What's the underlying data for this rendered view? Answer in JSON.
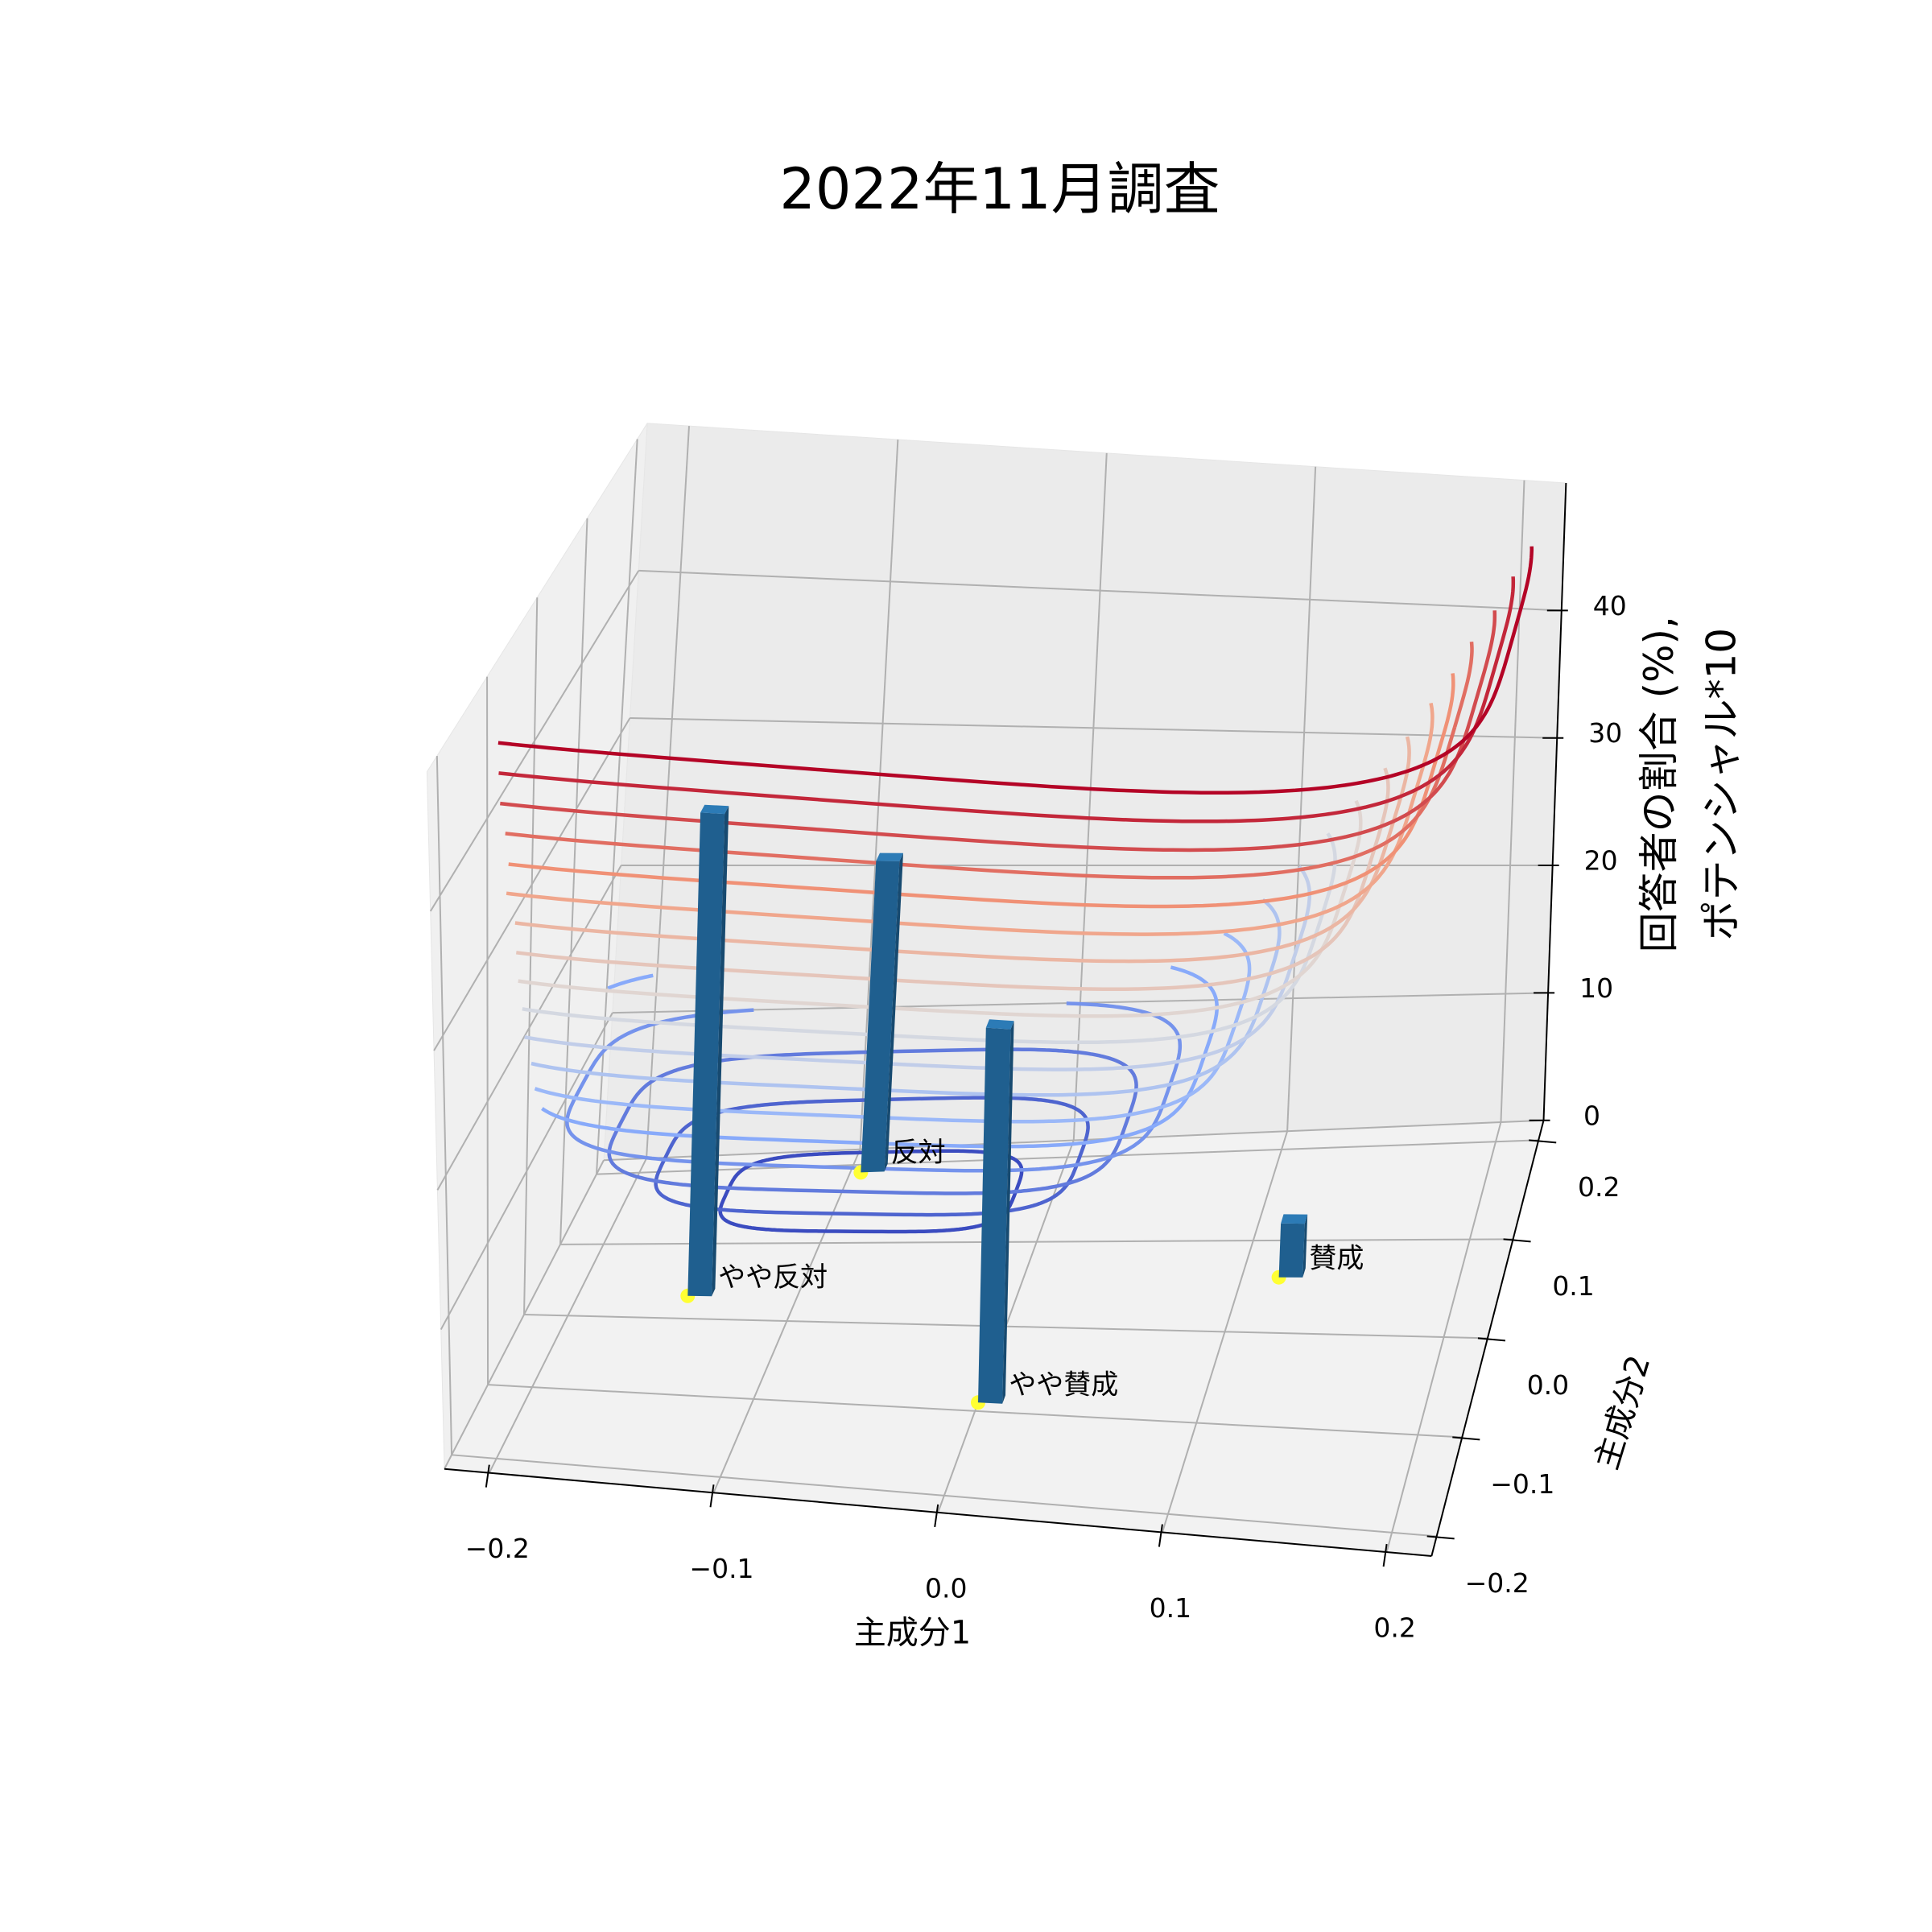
{
  "chart_data": {
    "type": "bar3d",
    "title": "2022年11月調査",
    "xlabel": "主成分1",
    "ylabel": "主成分2",
    "zlabel": [
      "回答者の割合 (%),",
      "ポテンシャル*10"
    ],
    "categories": [
      "やや反対",
      "反対",
      "やや賛成",
      "賛成"
    ],
    "x": [
      -0.15,
      -0.095,
      0.0,
      0.117
    ],
    "y": [
      0.03,
      0.19,
      -0.09,
      0.06
    ],
    "values": [
      34,
      22,
      27,
      4
    ],
    "color": "#1f5f8f",
    "marker_color": "#ffff33",
    "xlim": [
      -0.22,
      0.22
    ],
    "ylim": [
      -0.22,
      0.22
    ],
    "zlim": [
      0,
      50
    ],
    "xticks": [
      {
        "value": -0.2,
        "label": "−0.2"
      },
      {
        "value": -0.1,
        "label": "−0.1"
      },
      {
        "value": 0,
        "label": "0.0"
      },
      {
        "value": 0.1,
        "label": "0.1"
      },
      {
        "value": 0.2,
        "label": "0.2"
      }
    ],
    "yticks": [
      {
        "value": -0.2,
        "label": "−0.2"
      },
      {
        "value": -0.1,
        "label": "−0.1"
      },
      {
        "value": 0,
        "label": "0.0"
      },
      {
        "value": 0.1,
        "label": "0.1"
      },
      {
        "value": 0.2,
        "label": "0.2"
      }
    ],
    "zticks": [
      0,
      10,
      20,
      30,
      40
    ],
    "grid": true,
    "colormap": "coolwarm",
    "contour_center": [
      -0.08,
      0.12
    ],
    "contours": [
      {
        "level": 2.5,
        "rx": 0.067,
        "ry": 0.05
      },
      {
        "level": 5,
        "rx": 0.096,
        "ry": 0.072
      },
      {
        "level": 7.5,
        "rx": 0.117,
        "ry": 0.088
      },
      {
        "level": 10,
        "rx": 0.136,
        "ry": 0.102
      },
      {
        "level": 12.5,
        "rx": 0.152,
        "ry": 0.114
      },
      {
        "level": 15,
        "rx": 0.166,
        "ry": 0.125
      },
      {
        "level": 17.5,
        "rx": 0.179,
        "ry": 0.134
      },
      {
        "level": 20,
        "rx": 0.192,
        "ry": 0.144
      },
      {
        "level": 22.5,
        "rx": 0.203,
        "ry": 0.152
      },
      {
        "level": 25,
        "rx": 0.214,
        "ry": 0.161
      },
      {
        "level": 27.5,
        "rx": 0.226,
        "ry": 0.169
      },
      {
        "level": 30,
        "rx": 0.235,
        "ry": 0.176
      },
      {
        "level": 32.5,
        "rx": 0.245,
        "ry": 0.184
      },
      {
        "level": 35,
        "rx": 0.254,
        "ry": 0.191
      },
      {
        "level": 37.5,
        "rx": 0.262,
        "ry": 0.197
      },
      {
        "level": 40,
        "rx": 0.272,
        "ry": 0.204
      },
      {
        "level": 42.5,
        "rx": 0.28,
        "ry": 0.21
      },
      {
        "level": 45,
        "rx": 0.288,
        "ry": 0.216
      }
    ]
  }
}
